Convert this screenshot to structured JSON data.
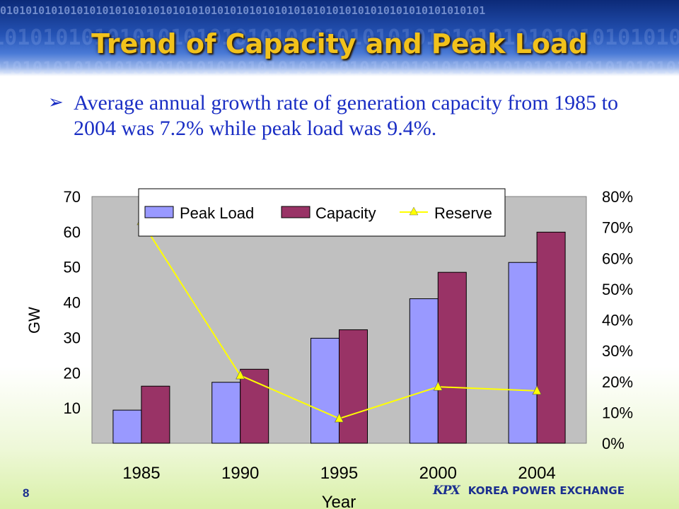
{
  "slide": {
    "title": "Trend of Capacity and Peak Load",
    "bullet": "Average annual growth rate of generation capacity from 1985 to 2004 was 7.2% while peak load was 9.4%.",
    "page_number": "8",
    "brand_logo": "KPX",
    "brand_name": "KOREA POWER EXCHANGE",
    "banner_pattern": "0101010101010101010101010101010101010101010101010101010101010101010101010101"
  },
  "chart_data": {
    "type": "bar",
    "categories": [
      "1985",
      "1990",
      "1995",
      "2000",
      "2004"
    ],
    "series": [
      {
        "name": "Peak Load",
        "kind": "bar",
        "axis": "left",
        "color": "#9999ff",
        "values": [
          9.4,
          17.3,
          29.8,
          41.0,
          51.3
        ]
      },
      {
        "name": "Capacity",
        "kind": "bar",
        "axis": "left",
        "color": "#993366",
        "values": [
          16.2,
          21.0,
          32.2,
          48.5,
          59.9
        ]
      },
      {
        "name": "Reserve",
        "kind": "line",
        "axis": "right",
        "color": "#ffff00",
        "values": [
          72,
          22,
          8,
          18.3,
          17
        ]
      }
    ],
    "xlabel": "Year",
    "ylabel": "GW",
    "ylim": [
      0,
      70
    ],
    "y_ticks": [
      "10",
      "20",
      "30",
      "40",
      "50",
      "60",
      "70"
    ],
    "y2lim": [
      0,
      80
    ],
    "y2_ticks": [
      "0%",
      "10%",
      "20%",
      "30%",
      "40%",
      "50%",
      "60%",
      "70%",
      "80%"
    ],
    "grid": false,
    "legend_position": "top",
    "plot_background": "#c0c0c0"
  }
}
